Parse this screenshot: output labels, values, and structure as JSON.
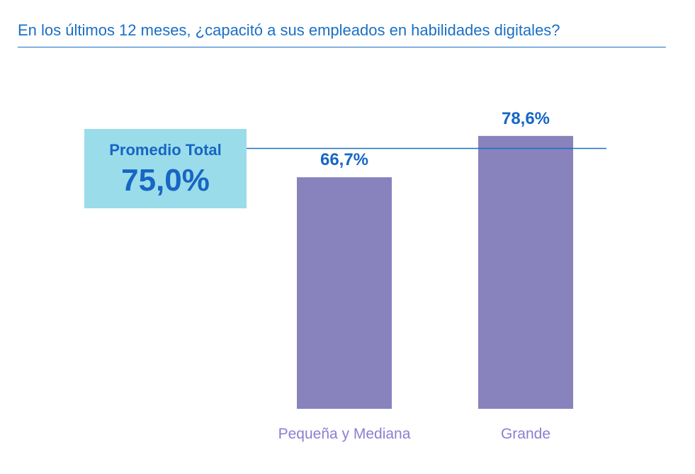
{
  "title": "En los últimos 12 meses, ¿capacitó a sus empleados en habilidades digitales?",
  "colors": {
    "bar": "#8882bd",
    "value_label": "#1766c4",
    "category_label": "#8b7fd0",
    "average_line": "#1a6fc6",
    "average_box": "#9adcea"
  },
  "average": {
    "label": "Promedio Total",
    "value": 75.0,
    "display": "75,0%"
  },
  "chart_data": {
    "type": "bar",
    "categories": [
      "Pequeña y Mediana",
      "Grande"
    ],
    "values": [
      66.7,
      78.6
    ],
    "value_labels": [
      "66,7%",
      "78,6%"
    ],
    "reference_line": {
      "label": "Promedio Total",
      "value": 75.0
    }
  }
}
